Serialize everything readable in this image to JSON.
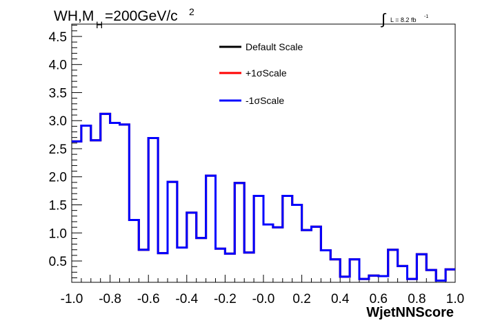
{
  "chart_data": {
    "type": "line",
    "title_main": "WH,M",
    "title_sub": "H",
    "title_rest": "=200GeV/c",
    "title_sup": "2",
    "lumi_integral": "∫",
    "lumi_text": "L = 8.2 fb",
    "lumi_sup": "-1",
    "xlabel": "WjetNNScore",
    "ylabel": "",
    "xlim": [
      -1.0,
      1.0
    ],
    "ylim": [
      0.12,
      4.72
    ],
    "x_ticks": [
      "-1.0",
      "-0.8",
      "-0.6",
      "-0.4",
      "-0.2",
      "-0.0",
      "0.2",
      "0.4",
      "0.6",
      "0.8",
      "1.0"
    ],
    "y_ticks": [
      "0.5",
      "1.0",
      "1.5",
      "2.0",
      "2.5",
      "3.0",
      "3.5",
      "4.0",
      "4.5"
    ],
    "bin_width": 0.05,
    "bin_edges_start": -1.0,
    "legend_position": "top-center",
    "series": [
      {
        "name": "Default Scale",
        "color": "#000000",
        "values": [
          2.63,
          2.91,
          2.65,
          3.12,
          2.96,
          2.93,
          1.23,
          0.7,
          2.69,
          0.64,
          1.91,
          0.74,
          1.36,
          0.91,
          2.02,
          0.72,
          0.63,
          1.89,
          0.65,
          1.66,
          1.15,
          1.1,
          1.66,
          1.5,
          1.05,
          1.11,
          0.69,
          0.53,
          0.22,
          0.53,
          0.18,
          0.24,
          0.23,
          0.7,
          0.41,
          0.18,
          0.62,
          0.34,
          0.15,
          0.35
        ]
      },
      {
        "name": "+1σScale",
        "color": "#ff0000",
        "values": [
          2.63,
          2.91,
          2.65,
          3.12,
          2.96,
          2.93,
          1.23,
          0.7,
          2.69,
          0.64,
          1.91,
          0.74,
          1.36,
          0.91,
          2.02,
          0.72,
          0.63,
          1.89,
          0.65,
          1.66,
          1.15,
          1.1,
          1.66,
          1.5,
          1.05,
          1.11,
          0.69,
          0.53,
          0.22,
          0.53,
          0.18,
          0.24,
          0.23,
          0.7,
          0.41,
          0.18,
          0.62,
          0.34,
          0.15,
          0.35
        ]
      },
      {
        "name": "-1σScale",
        "color": "#0000ff",
        "values": [
          2.63,
          2.91,
          2.65,
          3.12,
          2.96,
          2.93,
          1.23,
          0.7,
          2.69,
          0.64,
          1.91,
          0.74,
          1.36,
          0.91,
          2.02,
          0.72,
          0.63,
          1.89,
          0.65,
          1.66,
          1.15,
          1.1,
          1.66,
          1.5,
          1.05,
          1.11,
          0.69,
          0.53,
          0.22,
          0.53,
          0.18,
          0.24,
          0.23,
          0.7,
          0.41,
          0.18,
          0.62,
          0.34,
          0.15,
          0.35
        ]
      }
    ]
  }
}
